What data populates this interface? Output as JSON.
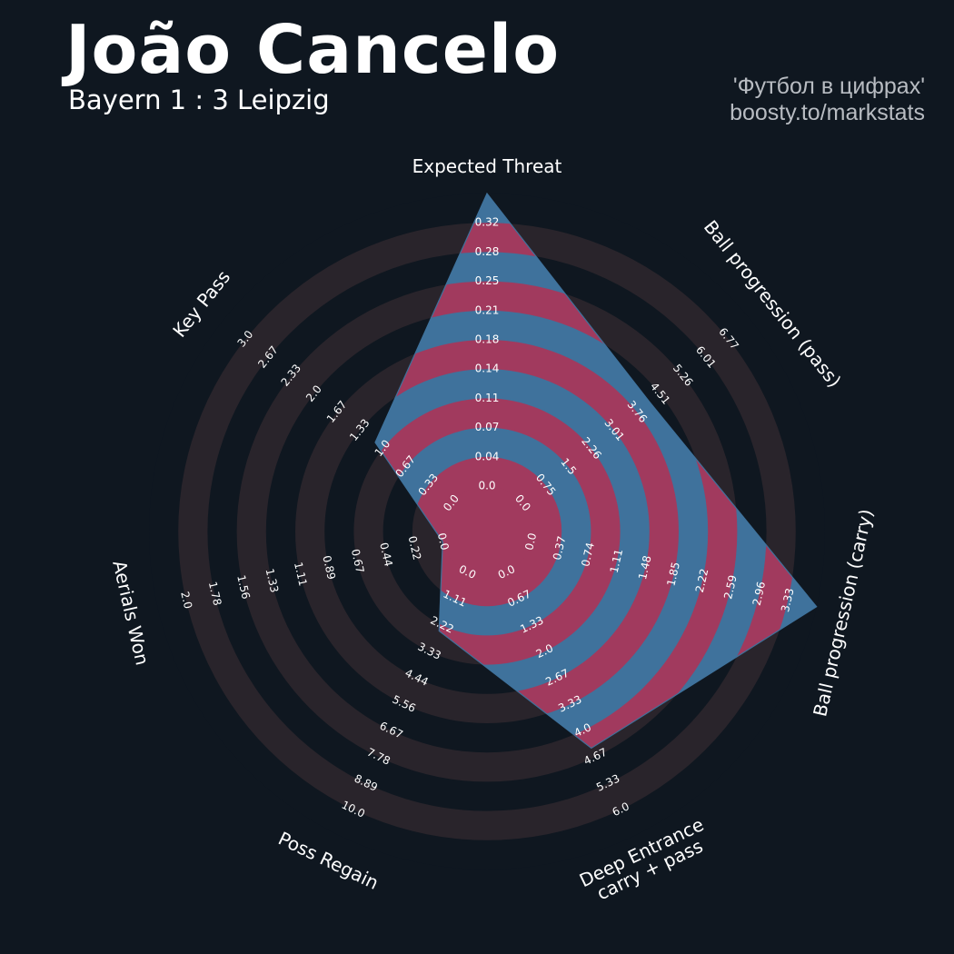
{
  "header": {
    "player": "João Cancelo",
    "match": "Bayern 1 : 3 Leipzig",
    "credit_line1": "'Футбол в цифрах'",
    "credit_line2": "boosty.to/markstats"
  },
  "colors": {
    "background": "#0f1720",
    "ring_dark": "#0f1720",
    "ring_light": "#29242b",
    "fill_blue": "#3f729c",
    "fill_red": "#a13a5e",
    "text": "#ffffff"
  },
  "chart_data": {
    "type": "radar",
    "params": [
      "Expected Threat",
      "Ball progression (pass)",
      "Ball progression (carry)",
      "Deep Entrance\ncarry + pass",
      "Poss Regain",
      "Aerials Won",
      "Key Pass"
    ],
    "ticks": [
      [
        "0.0",
        "0.04",
        "0.07",
        "0.11",
        "0.14",
        "0.18",
        "0.21",
        "0.25",
        "0.28",
        "0.32"
      ],
      [
        "0.0",
        "0.75",
        "1.5",
        "2.26",
        "3.01",
        "3.76",
        "4.51",
        "5.26",
        "6.01",
        "6.77"
      ],
      [
        "0.0",
        "0.37",
        "0.74",
        "1.11",
        "1.48",
        "1.85",
        "2.22",
        "2.59",
        "2.96",
        "3.33"
      ],
      [
        "0.0",
        "0.67",
        "1.33",
        "2.0",
        "2.67",
        "3.33",
        "4.0",
        "4.67",
        "5.33",
        "6.0"
      ],
      [
        "0.0",
        "1.11",
        "2.22",
        "3.33",
        "4.44",
        "5.56",
        "6.67",
        "7.78",
        "8.89",
        "10.0"
      ],
      [
        "0.0",
        "0.22",
        "0.44",
        "0.67",
        "0.89",
        "1.11",
        "1.33",
        "1.56",
        "1.78",
        "2.0"
      ],
      [
        "0.0",
        "0.33",
        "0.67",
        "1.0",
        "1.33",
        "1.67",
        "2.0",
        "2.33",
        "2.67",
        "3.0"
      ]
    ],
    "ranges": [
      [
        0,
        0.32
      ],
      [
        0,
        6.77
      ],
      [
        0,
        3.33
      ],
      [
        0,
        6.0
      ],
      [
        0,
        10.0
      ],
      [
        0,
        2.0
      ],
      [
        0,
        3.0
      ]
    ],
    "values": [
      0.32,
      3.76,
      3.33,
      4.0,
      2.22,
      0.0,
      1.0
    ]
  }
}
